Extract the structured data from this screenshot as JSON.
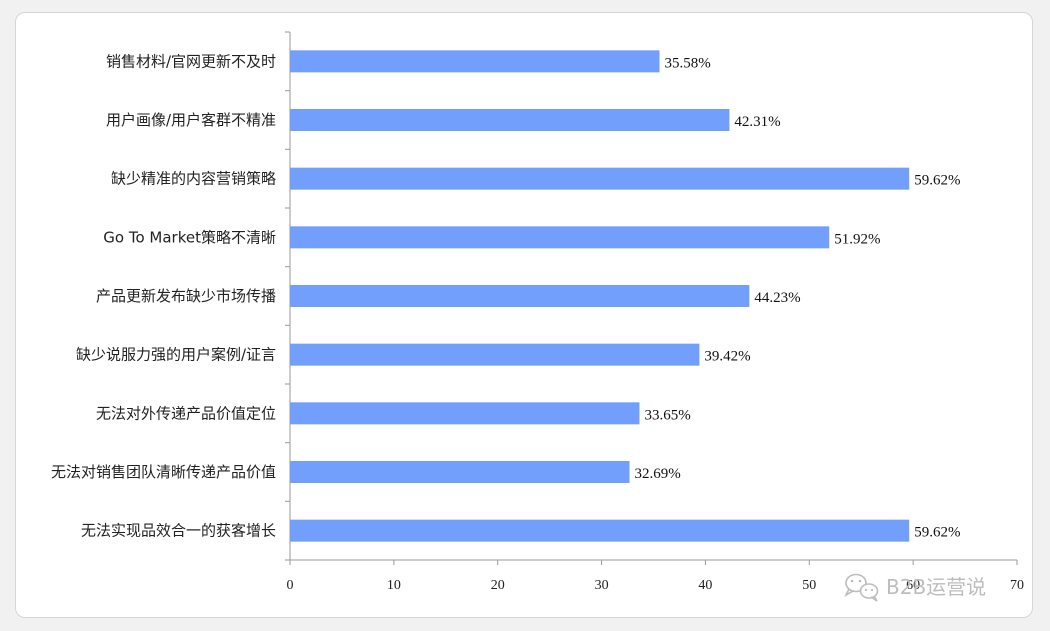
{
  "chart_data": {
    "type": "bar",
    "orientation": "horizontal",
    "categories": [
      "销售材料/官网更新不及时",
      "用户画像/用户客群不精准",
      "缺少精准的内容营销策略",
      "Go To Market策略不清晰",
      "产品更新发布缺少市场传播",
      "缺少说服力强的用户案例/证言",
      "无法对外传递产品价值定位",
      "无法对销售团队清晰传递产品价值",
      "无法实现品效合一的获客增长"
    ],
    "values": [
      35.58,
      42.31,
      59.62,
      51.92,
      44.23,
      39.42,
      33.65,
      32.69,
      59.62
    ],
    "value_labels": [
      "35.58%",
      "42.31%",
      "59.62%",
      "51.92%",
      "44.23%",
      "39.42%",
      "33.65%",
      "32.69%",
      "59.62%"
    ],
    "xlim": [
      0,
      70
    ],
    "xticks": [
      "0",
      "10",
      "20",
      "30",
      "40",
      "50",
      "60",
      "70"
    ],
    "bar_color": "#729ffb",
    "grid": false,
    "title": "",
    "xlabel": "",
    "ylabel": ""
  },
  "watermark": {
    "text": "B2B运营说",
    "icon": "wechat-icon"
  }
}
